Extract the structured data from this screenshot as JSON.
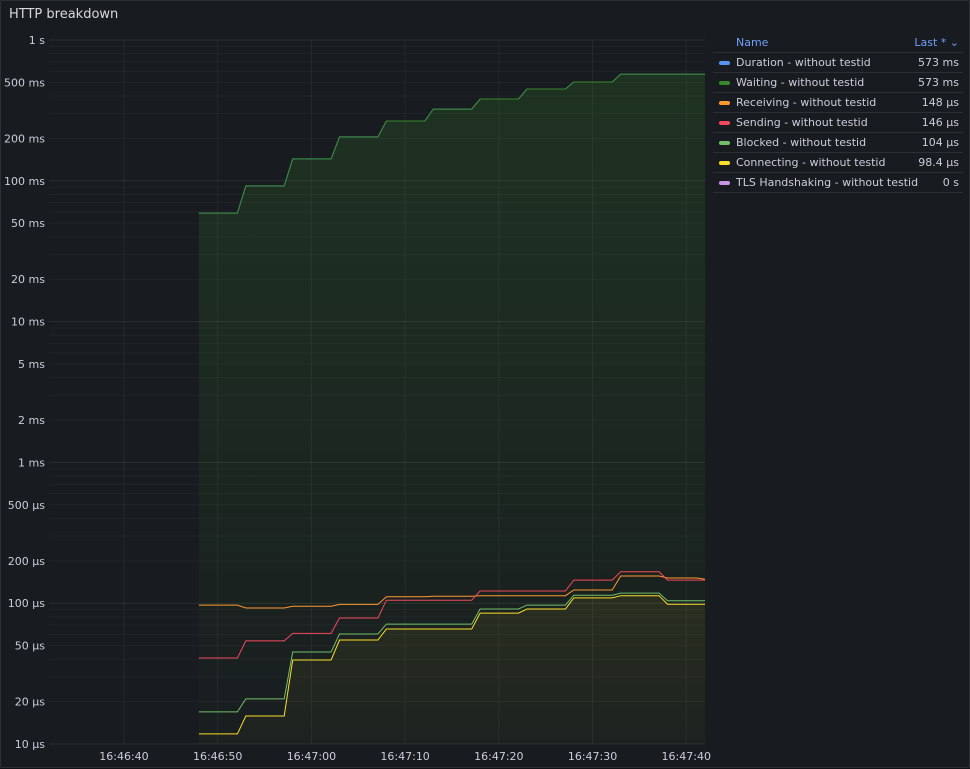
{
  "panel": {
    "title": "HTTP breakdown"
  },
  "legend": {
    "name_header": "Name",
    "value_header": "Last * ⌄",
    "items": [
      {
        "name": "Duration - without testid",
        "last": "573 ms",
        "color": "#5794f2"
      },
      {
        "name": "Waiting - without testid",
        "last": "573 ms",
        "color": "#37872d"
      },
      {
        "name": "Receiving - without testid",
        "last": "148 µs",
        "color": "#ff9830"
      },
      {
        "name": "Sending - without testid",
        "last": "146 µs",
        "color": "#f2495c"
      },
      {
        "name": "Blocked - without testid",
        "last": "104 µs",
        "color": "#73bf69"
      },
      {
        "name": "Connecting - without testid",
        "last": "98.4 µs",
        "color": "#fade2a"
      },
      {
        "name": "TLS Handshaking - without testid",
        "last": "0 s",
        "color": "#ca95e5"
      }
    ]
  },
  "chart_data": {
    "type": "line",
    "title": "HTTP breakdown",
    "y_scale": "log",
    "ylim": [
      1e-05,
      1
    ],
    "y_ticks": [
      {
        "v": 1,
        "label": "1 s"
      },
      {
        "v": 0.5,
        "label": "500 ms"
      },
      {
        "v": 0.2,
        "label": "200 ms"
      },
      {
        "v": 0.1,
        "label": "100 ms"
      },
      {
        "v": 0.05,
        "label": "50 ms"
      },
      {
        "v": 0.02,
        "label": "20 ms"
      },
      {
        "v": 0.01,
        "label": "10 ms"
      },
      {
        "v": 0.005,
        "label": "5 ms"
      },
      {
        "v": 0.002,
        "label": "2 ms"
      },
      {
        "v": 0.001,
        "label": "1 ms"
      },
      {
        "v": 0.0005,
        "label": "500 µs"
      },
      {
        "v": 0.0002,
        "label": "200 µs"
      },
      {
        "v": 0.0001,
        "label": "100 µs"
      },
      {
        "v": 5e-05,
        "label": "50 µs"
      },
      {
        "v": 2e-05,
        "label": "20 µs"
      },
      {
        "v": 1e-05,
        "label": "10 µs"
      }
    ],
    "xlim": [
      "16:46:32",
      "16:47:42"
    ],
    "x_ticks": [
      "16:46:40",
      "16:46:50",
      "16:47:00",
      "16:47:10",
      "16:47:20",
      "16:47:30",
      "16:47:40"
    ],
    "x": [
      "16:46:48",
      "16:46:53",
      "16:46:58",
      "16:47:03",
      "16:47:08",
      "16:47:13",
      "16:47:18",
      "16:47:23",
      "16:47:28",
      "16:47:33",
      "16:47:38",
      "16:47:42"
    ],
    "grid": true,
    "legend_placement": "right",
    "series": [
      {
        "name": "Duration - without testid",
        "color": "#5794f2",
        "values": [
          0.059,
          0.092,
          0.143,
          0.205,
          0.266,
          0.323,
          0.381,
          0.449,
          0.503,
          0.573,
          0.573,
          0.573
        ]
      },
      {
        "name": "Waiting - without testid",
        "color": "#37872d",
        "fill": true,
        "values": [
          0.059,
          0.092,
          0.143,
          0.205,
          0.266,
          0.323,
          0.381,
          0.449,
          0.503,
          0.573,
          0.573,
          0.573
        ]
      },
      {
        "name": "Receiving - without testid",
        "color": "#ff9830",
        "values": [
          9.7e-05,
          9.25e-05,
          9.5e-05,
          9.8e-05,
          0.000111,
          0.000112,
          0.000113,
          0.000113,
          0.000124,
          0.000156,
          0.000151,
          0.000148
        ]
      },
      {
        "name": "Sending - without testid",
        "color": "#f2495c",
        "values": [
          4.08e-05,
          5.4e-05,
          6.1e-05,
          7.85e-05,
          0.000105,
          0.000105,
          0.000122,
          0.000122,
          0.000146,
          0.000167,
          0.000146,
          0.000146
        ]
      },
      {
        "name": "Blocked - without testid",
        "color": "#73bf69",
        "values": [
          1.69e-05,
          2.09e-05,
          4.5e-05,
          6.04e-05,
          7.1e-05,
          7.1e-05,
          9.1e-05,
          9.7e-05,
          0.000114,
          0.000118,
          0.000104,
          0.000104
        ]
      },
      {
        "name": "Connecting - without testid",
        "color": "#fade2a",
        "fill": true,
        "values": [
          1.18e-05,
          1.58e-05,
          3.95e-05,
          5.48e-05,
          6.56e-05,
          6.56e-05,
          8.5e-05,
          9.1e-05,
          0.000109,
          0.000113,
          9.84e-05,
          9.84e-05
        ]
      },
      {
        "name": "TLS Handshaking - without testid",
        "color": "#ca95e5",
        "values": [
          0,
          0,
          0,
          0,
          0,
          0,
          0,
          0,
          0,
          0,
          0,
          0
        ]
      }
    ]
  }
}
